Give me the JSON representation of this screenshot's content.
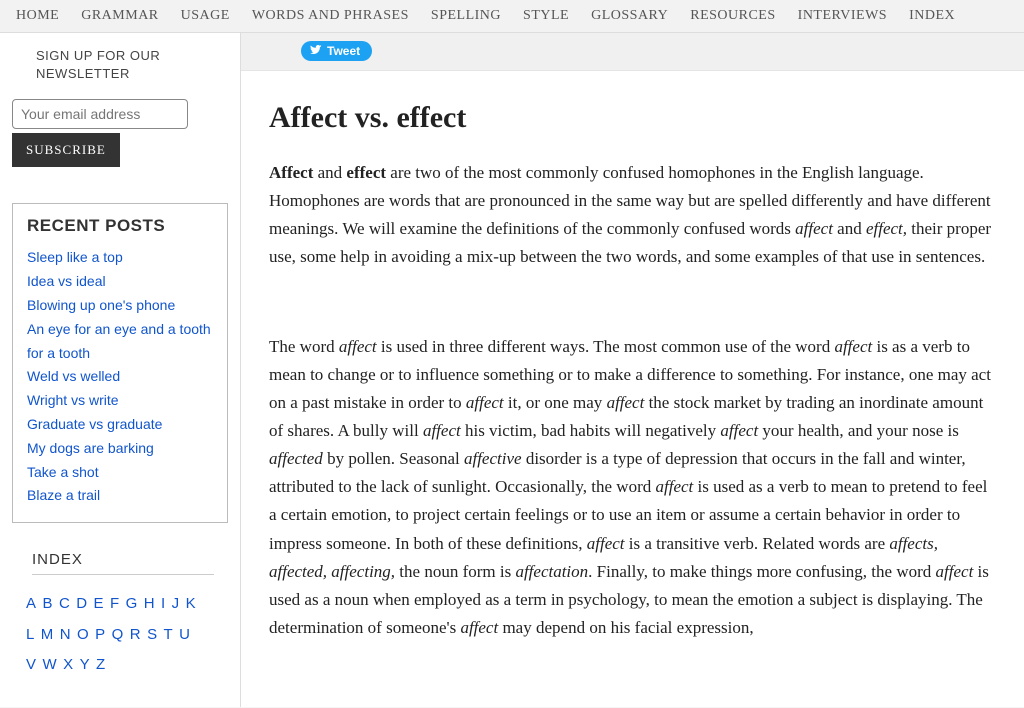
{
  "nav": {
    "items": [
      "HOME",
      "GRAMMAR",
      "USAGE",
      "WORDS AND PHRASES",
      "SPELLING",
      "STYLE",
      "GLOSSARY",
      "RESOURCES",
      "INTERVIEWS",
      "INDEX"
    ]
  },
  "newsletter": {
    "title": "SIGN UP FOR OUR NEWSLETTER",
    "placeholder": "Your email address",
    "button": "SUBSCRIBE"
  },
  "recent": {
    "title": "RECENT POSTS",
    "items": [
      "Sleep like a top",
      "Idea vs ideal",
      "Blowing up one's phone",
      "An eye for an eye and a tooth for a tooth",
      "Weld vs welled",
      "Wright vs write",
      "Graduate vs graduate",
      "My dogs are barking",
      "Take a shot",
      "Blaze a trail"
    ]
  },
  "index": {
    "title": "INDEX",
    "letters": [
      "A",
      "B",
      "C",
      "D",
      "E",
      "F",
      "G",
      "H",
      "I",
      "J",
      "K",
      "L",
      "M",
      "N",
      "O",
      "P",
      "Q",
      "R",
      "S",
      "T",
      "U",
      "V",
      "W",
      "X",
      "Y",
      "Z"
    ]
  },
  "tweet": {
    "label": "Tweet"
  },
  "article": {
    "title": "Affect vs. effect",
    "p1": "<strong>Affect</strong> and <strong>effect</strong> are two of the most commonly confused homophones in the English language. Homophones are words that are pronounced in the same way but are spelled differently and have different meanings. We will examine the definitions of the commonly confused words <em>affect</em> and <em>effect,</em> their proper use, some help in avoiding a mix-up between the two words, and some examples of that use in sentences.",
    "p2": "The word <em>affect</em> is used in three different ways. The most common use of the word <em>affect</em> is as a verb to mean to change or to influence something or to make a difference to something. For instance, one may act on a past mistake in order to <em>affect</em> it, or one may <em>affect</em> the stock market by trading an inordinate amount of shares. A bully will <em>affect</em> his victim, bad habits will negatively <em>affect</em> your health, and your nose is <em>affected</em> by pollen. Seasonal <em>affective</em> disorder is a type of depression that occurs in the fall and winter, attributed to the lack of sunlight. Occasionally, the word <em>affect</em> is used as a verb to mean to pretend to feel a certain emotion, to project certain feelings or to use an item or assume a certain behavior in order to impress someone. In both of these definitions, <em>affect</em> is a transitive verb. Related words are <em>affects, affected, affecting,</em> the noun form is <em>affectation</em>. Finally, to make things more confusing, the word <em>affect</em> is used as a noun when employed as a term in psychology, to mean the emotion a subject is displaying. The determination of someone's <em>affect</em> may depend on his facial expression,"
  }
}
